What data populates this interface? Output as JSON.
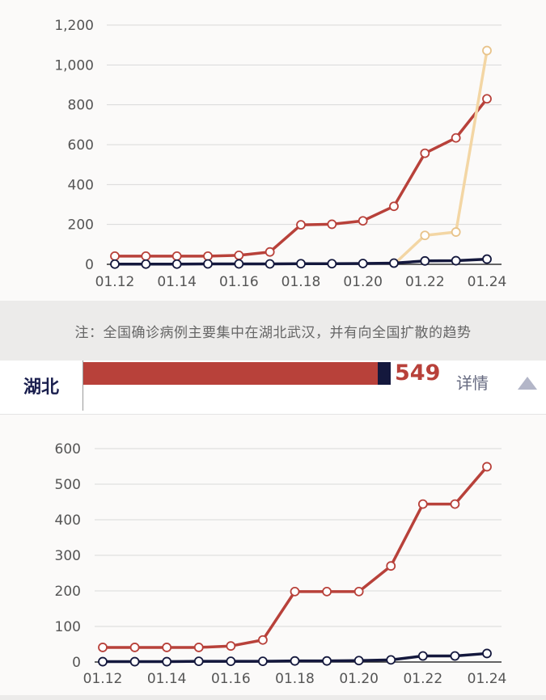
{
  "note": "注：全国确诊病例主要集中在湖北武汉，并有向全国扩散的趋势",
  "region": {
    "name": "湖北",
    "value": "549",
    "details_label": "详情",
    "bar_fraction": 1.0
  },
  "colors": {
    "confirmed": "#b8413a",
    "suspected": "#f3d6a4",
    "deaths": "#14183d",
    "grid": "#d9d9d9"
  },
  "icons": {
    "toggle": "triangle-up-icon"
  },
  "chart_data": [
    {
      "type": "line",
      "x": [
        "01.12",
        "01.13",
        "01.14",
        "01.15",
        "01.16",
        "01.17",
        "01.18",
        "01.19",
        "01.20",
        "01.21",
        "01.22",
        "01.23",
        "01.24"
      ],
      "x_tick_labels": [
        "01.12",
        "01.14",
        "01.16",
        "01.18",
        "01.20",
        "01.22",
        "01.24"
      ],
      "y_ticks": [
        "0",
        "200",
        "400",
        "600",
        "800",
        "1,000",
        "1,200"
      ],
      "ylim": [
        0,
        1200
      ],
      "grid": true,
      "series": [
        {
          "color": "#b8413a",
          "values": [
            41,
            41,
            41,
            41,
            45,
            62,
            198,
            201,
            218,
            291,
            557,
            634,
            830
          ]
        },
        {
          "color": "#f3d6a4",
          "values": [
            null,
            null,
            null,
            null,
            null,
            null,
            null,
            null,
            null,
            0,
            145,
            162,
            1072
          ]
        },
        {
          "color": "#14183d",
          "values": [
            1,
            1,
            1,
            2,
            2,
            2,
            3,
            3,
            4,
            6,
            17,
            18,
            26
          ]
        }
      ]
    },
    {
      "type": "line",
      "x": [
        "01.12",
        "01.13",
        "01.14",
        "01.15",
        "01.16",
        "01.17",
        "01.18",
        "01.19",
        "01.20",
        "01.21",
        "01.22",
        "01.23",
        "01.24"
      ],
      "x_tick_labels": [
        "01.12",
        "01.14",
        "01.16",
        "01.18",
        "01.20",
        "01.22",
        "01.24"
      ],
      "y_ticks": [
        "0",
        "100",
        "200",
        "300",
        "400",
        "500",
        "600"
      ],
      "ylim": [
        0,
        600
      ],
      "grid": true,
      "series": [
        {
          "color": "#b8413a",
          "values": [
            41,
            41,
            41,
            41,
            45,
            62,
            198,
            198,
            198,
            270,
            444,
            444,
            549
          ]
        },
        {
          "color": "#14183d",
          "values": [
            1,
            1,
            1,
            2,
            2,
            2,
            3,
            3,
            4,
            6,
            17,
            17,
            24
          ]
        }
      ]
    }
  ]
}
